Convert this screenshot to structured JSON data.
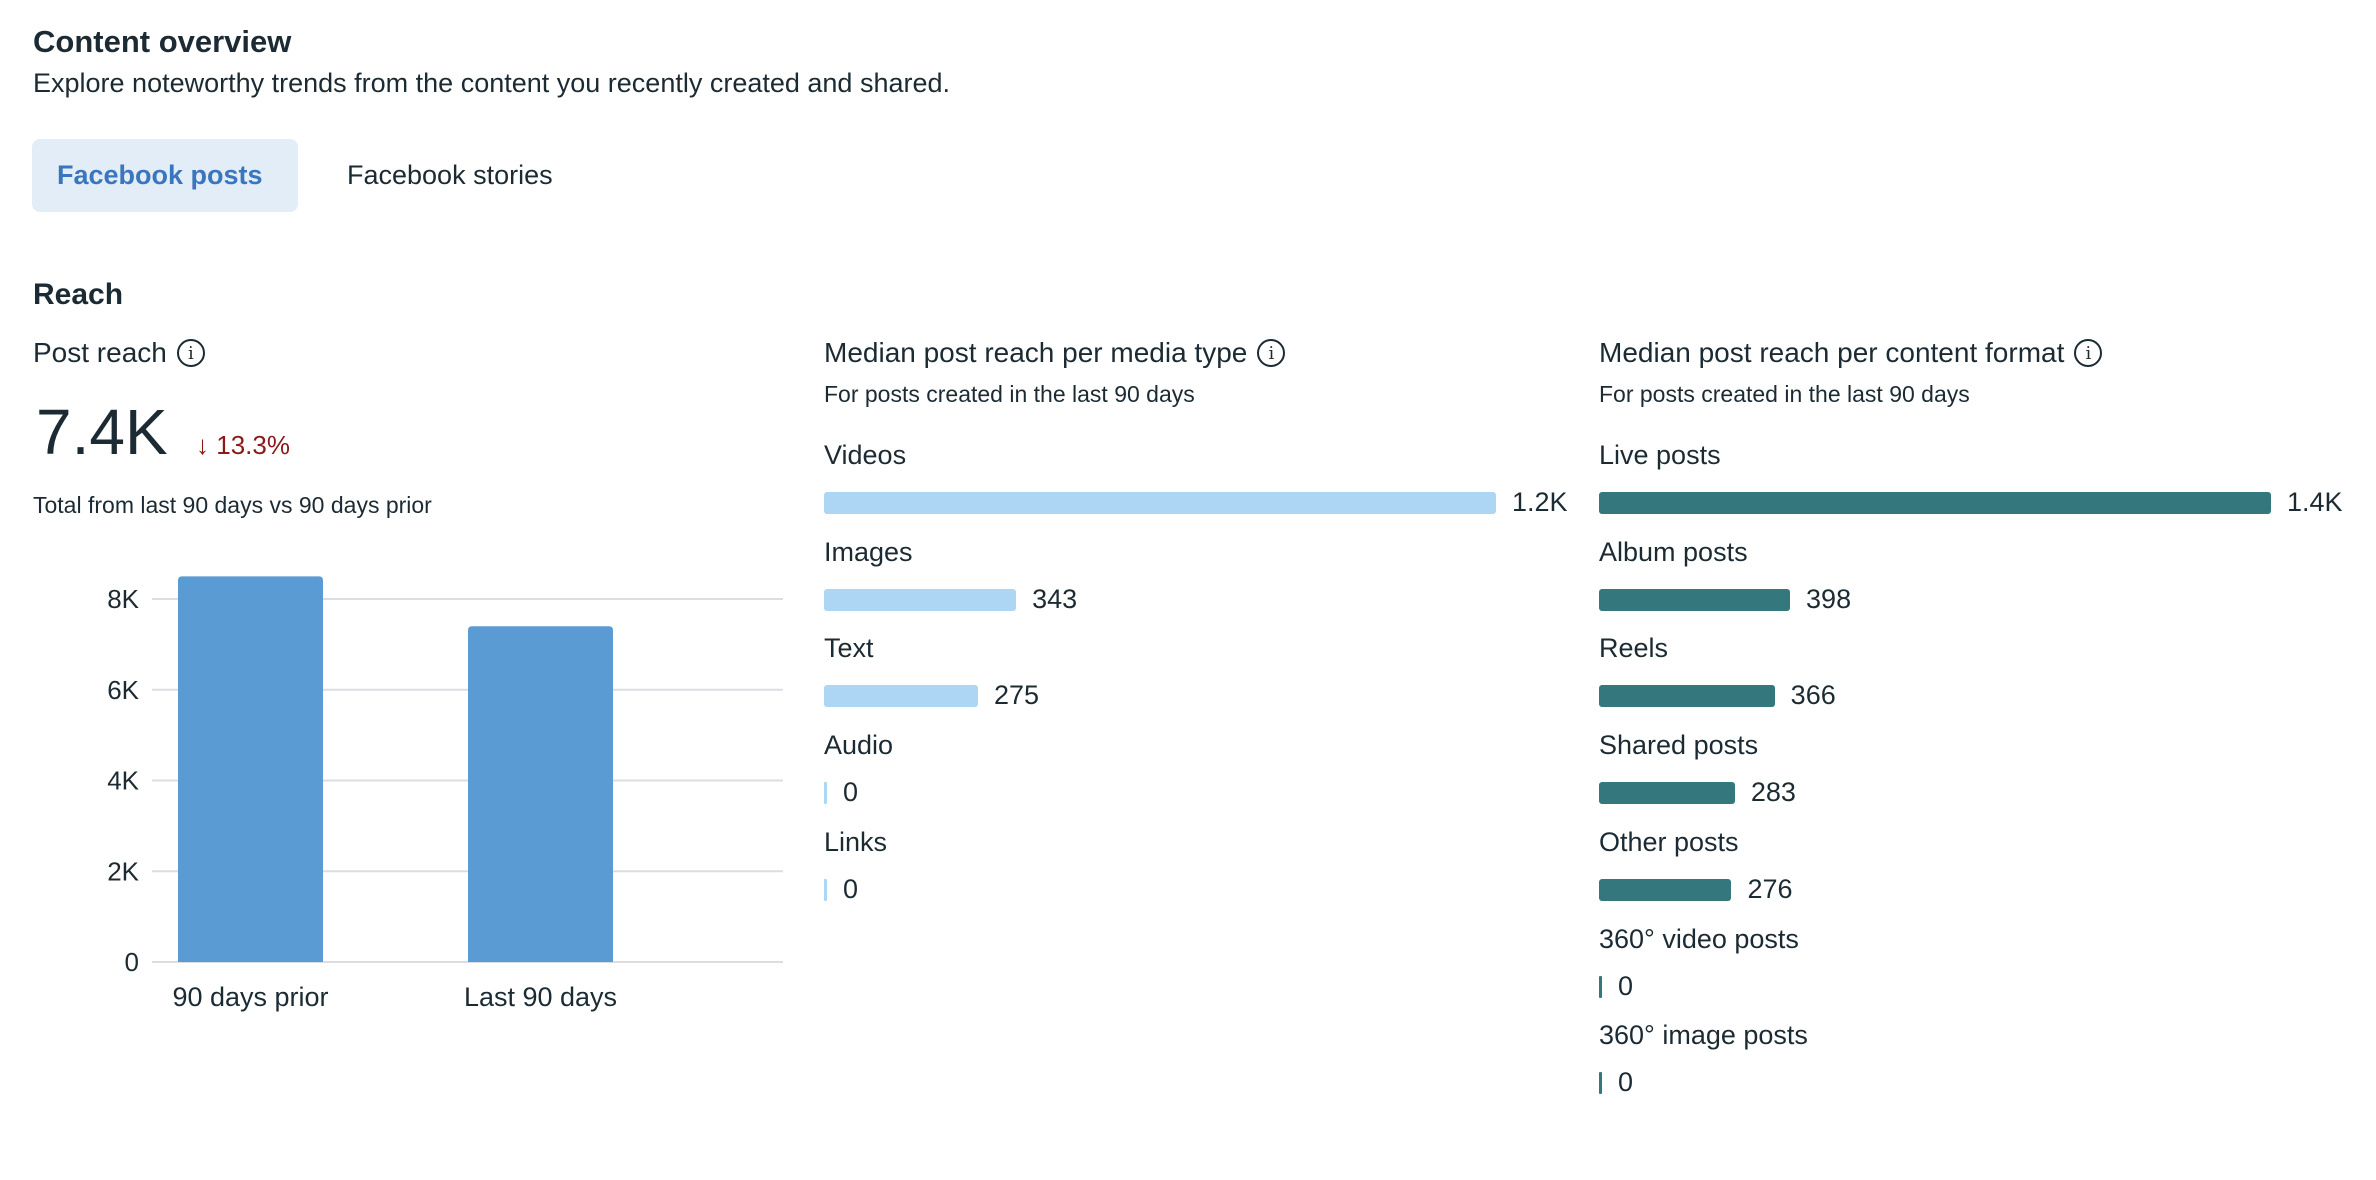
{
  "header": {
    "title": "Content overview",
    "subtitle": "Explore noteworthy trends from the content you recently created and shared."
  },
  "tabs": [
    {
      "label": "Facebook posts",
      "active": true
    },
    {
      "label": "Facebook stories",
      "active": false
    }
  ],
  "section_title": "Reach",
  "post_reach": {
    "title": "Post reach",
    "value": "7.4K",
    "change": "13.3%",
    "change_direction": "down",
    "note": "Total from last 90 days vs 90 days prior"
  },
  "colors": {
    "reach_bar": "#5b9bd3",
    "media_bar": "#acd6f3",
    "format_bar": "#34777c",
    "negative": "#8b1a1a"
  },
  "chart_data": [
    {
      "type": "bar",
      "title": "Post reach",
      "categories": [
        "90 days prior",
        "Last 90 days"
      ],
      "values": [
        8500,
        7400
      ],
      "yticks": [
        0,
        2000,
        4000,
        6000,
        8000
      ],
      "ytick_labels": [
        "0",
        "2K",
        "4K",
        "6K",
        "8K"
      ],
      "ylim": [
        0,
        8000
      ],
      "grid": true
    },
    {
      "type": "bar",
      "orientation": "horizontal",
      "title": "Median post reach per media type",
      "subtitle": "For posts created in the last 90 days",
      "max": 1200,
      "items": [
        {
          "label": "Videos",
          "value": 1200,
          "display": "1.2K"
        },
        {
          "label": "Images",
          "value": 343,
          "display": "343"
        },
        {
          "label": "Text",
          "value": 275,
          "display": "275"
        },
        {
          "label": "Audio",
          "value": 0,
          "display": "0"
        },
        {
          "label": "Links",
          "value": 0,
          "display": "0"
        }
      ]
    },
    {
      "type": "bar",
      "orientation": "horizontal",
      "title": "Median post reach per content format",
      "subtitle": "For posts created in the last 90 days",
      "max": 1400,
      "items": [
        {
          "label": "Live posts",
          "value": 1400,
          "display": "1.4K"
        },
        {
          "label": "Album posts",
          "value": 398,
          "display": "398"
        },
        {
          "label": "Reels",
          "value": 366,
          "display": "366"
        },
        {
          "label": "Shared posts",
          "value": 283,
          "display": "283"
        },
        {
          "label": "Other posts",
          "value": 276,
          "display": "276"
        },
        {
          "label": "360° video posts",
          "value": 0,
          "display": "0"
        },
        {
          "label": "360° image posts",
          "value": 0,
          "display": "0"
        }
      ]
    }
  ]
}
